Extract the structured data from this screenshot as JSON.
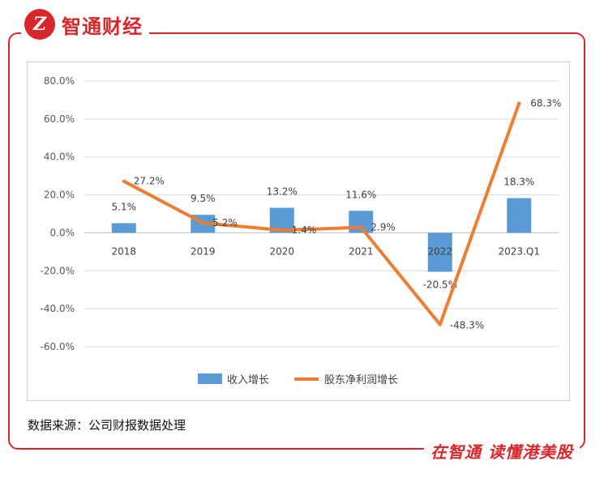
{
  "brand": {
    "logo_glyph": "Z",
    "name": "智通财经",
    "accent_color": "#d9262b"
  },
  "footer": {
    "source": "数据来源：公司财报数据处理",
    "slogan": "在智通  读懂港美股"
  },
  "chart_data": {
    "type": "bar",
    "categories": [
      "2018",
      "2019",
      "2020",
      "2021",
      "2022",
      "2023.Q1"
    ],
    "ylim": [
      -60,
      80
    ],
    "yticks": [
      "80.0%",
      "60.0%",
      "40.0%",
      "20.0%",
      "0.0%",
      "-20.0%",
      "-40.0%",
      "-60.0%"
    ],
    "ytick_values": [
      80,
      60,
      40,
      20,
      0,
      -20,
      -40,
      -60
    ],
    "grid": true,
    "legend_position": "bottom",
    "series": [
      {
        "name": "收入增长",
        "kind": "bar",
        "color": "#5b9bd5",
        "values": [
          5.1,
          9.5,
          13.2,
          11.6,
          -20.5,
          18.3
        ],
        "labels": [
          "5.1%",
          "9.5%",
          "13.2%",
          "11.6%",
          "-20.5%",
          "18.3%"
        ]
      },
      {
        "name": "股东净利润增长",
        "kind": "line",
        "color": "#ed7d31",
        "values": [
          27.2,
          5.2,
          1.4,
          2.9,
          -48.3,
          68.3
        ],
        "labels": [
          "27.2%",
          "5.2%",
          "1.4%",
          "2.9%",
          "-48.3%",
          "68.3%"
        ]
      }
    ]
  }
}
